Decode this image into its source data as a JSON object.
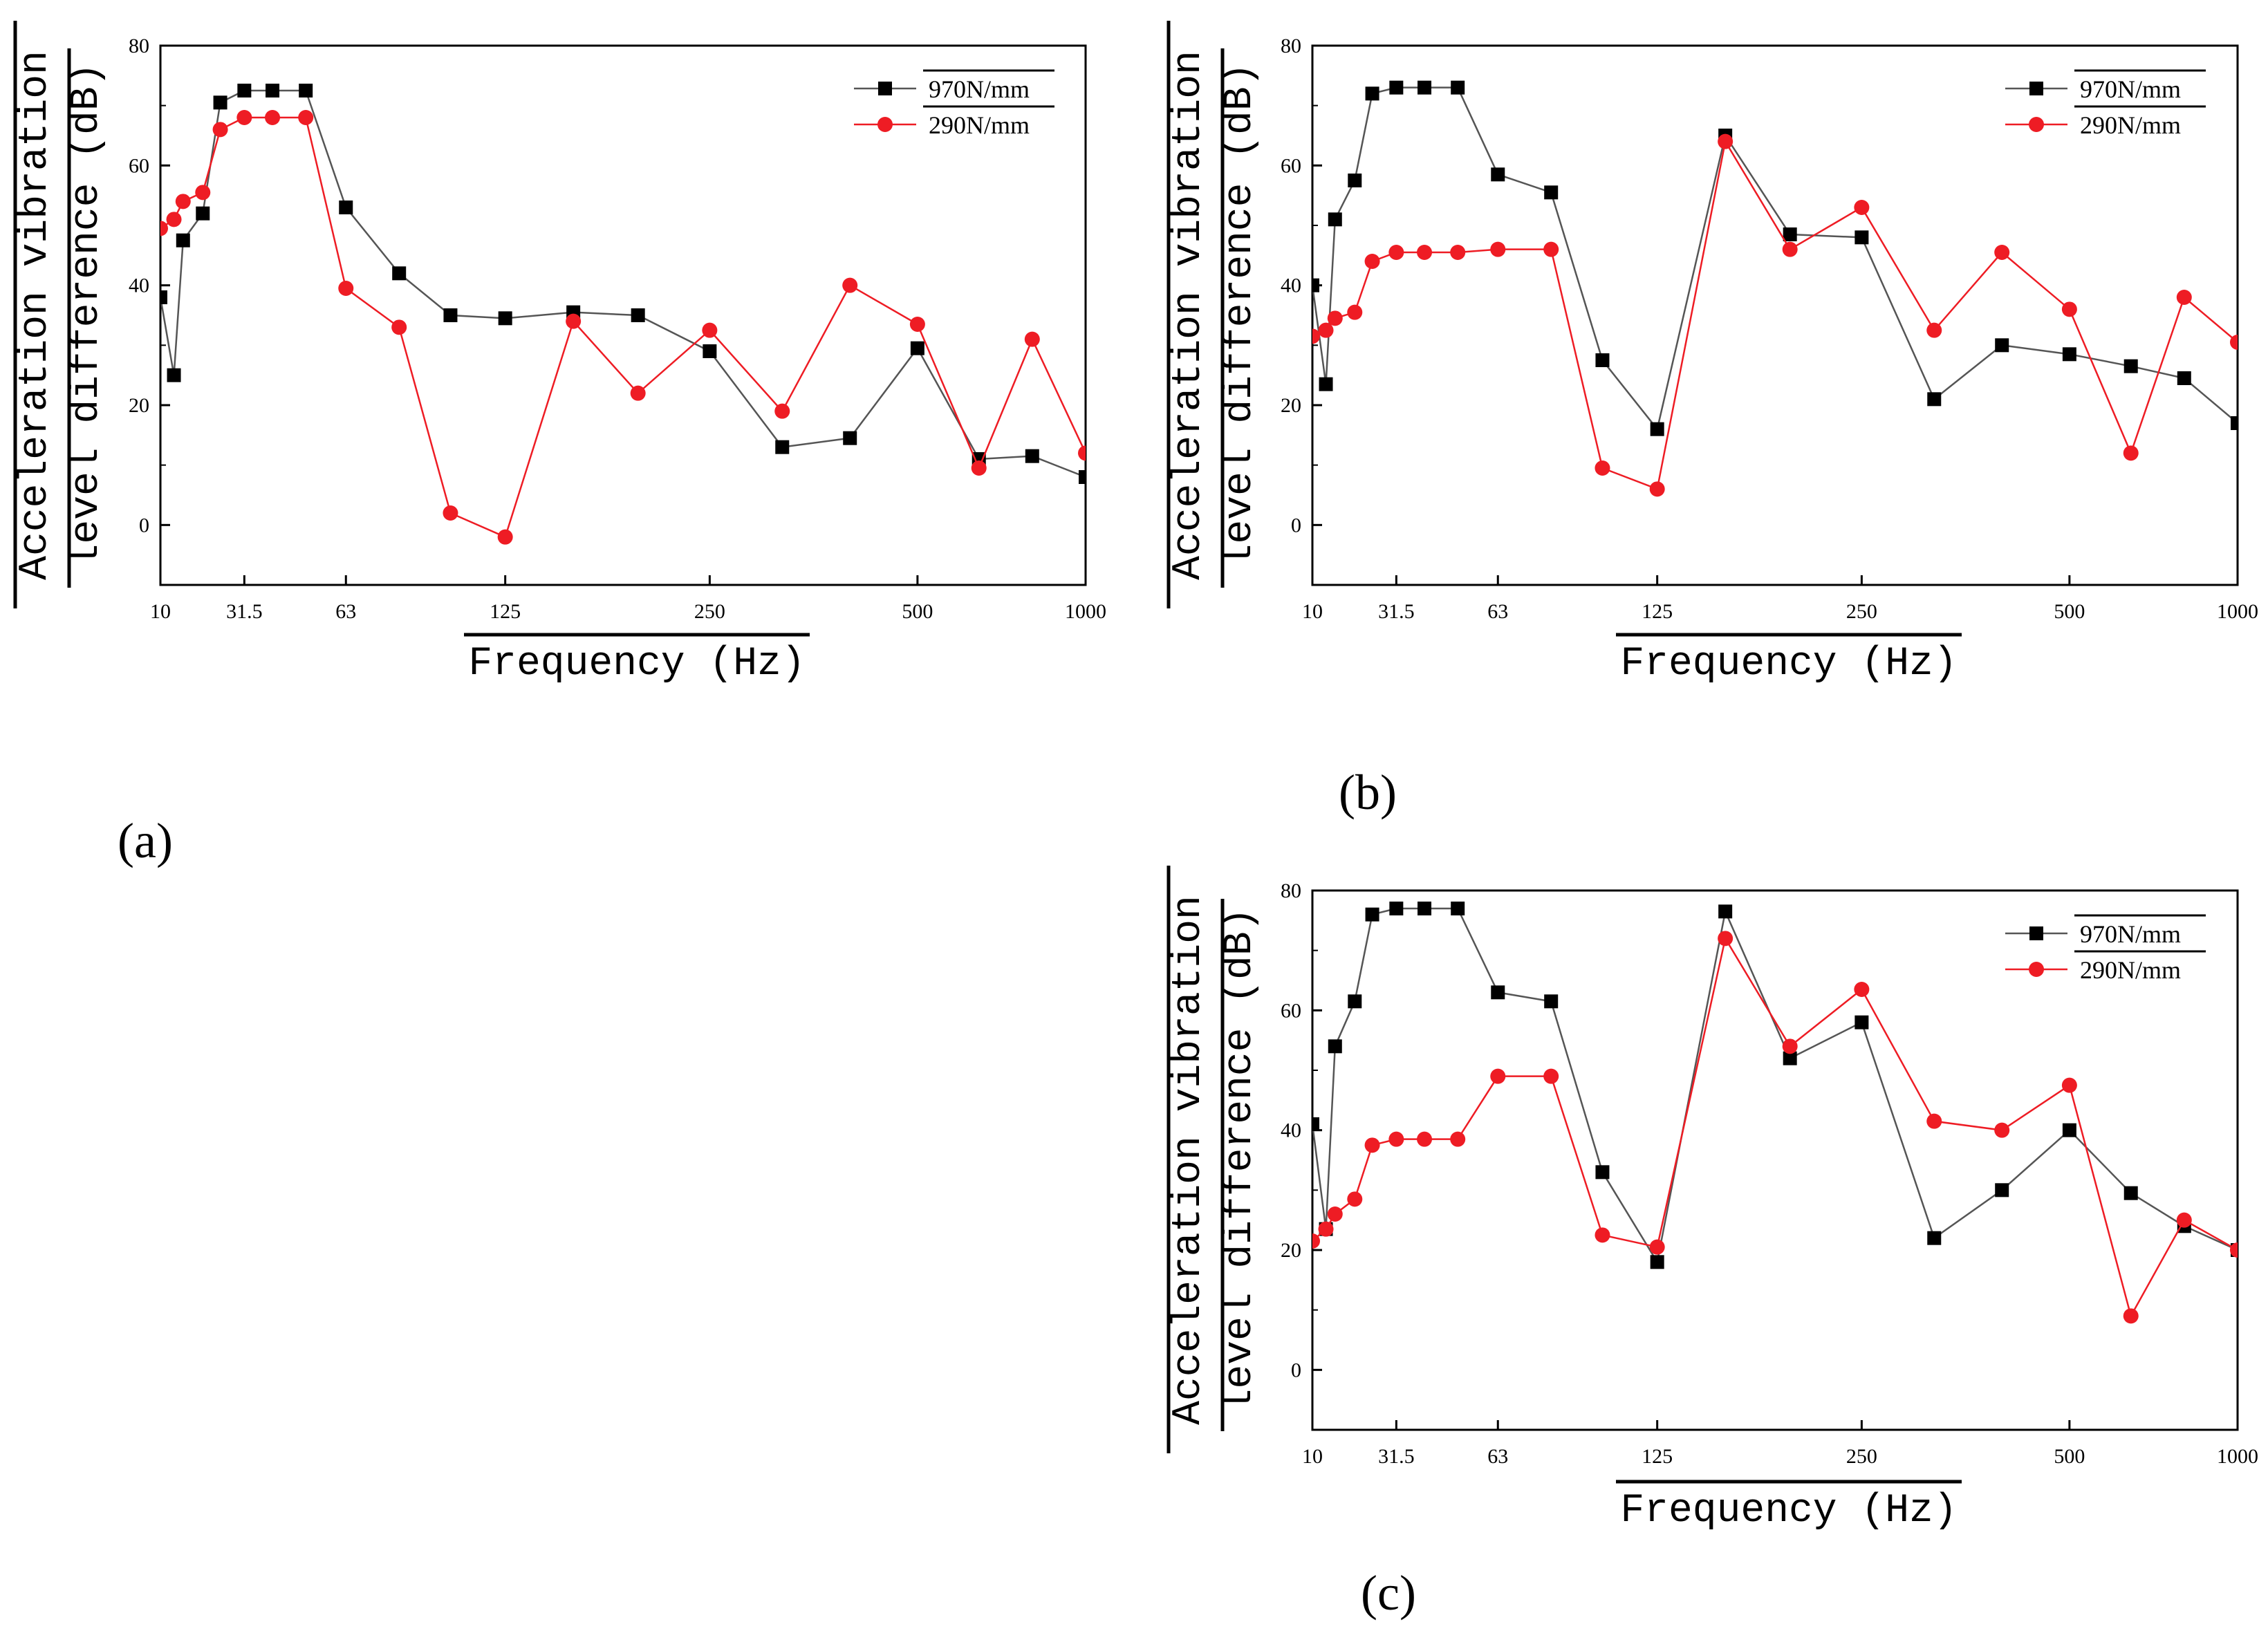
{
  "colors": {
    "series_black": "#000000",
    "series_red": "#ee1c24",
    "line_black": "#555555",
    "axis": "#000000"
  },
  "chart_data": [
    {
      "type": "line",
      "panel": "(a)",
      "xlabel": "Frequency (Hz)",
      "ylabel_line1": "Acceleration vibration",
      "ylabel_line2": "level difference (dB)",
      "ylim": [
        -10,
        80
      ],
      "yticks": [
        "80",
        "60",
        "40",
        "20",
        "0"
      ],
      "xticks": [
        "10",
        "31.5",
        "63",
        "125",
        "250",
        "500",
        "1000"
      ],
      "series": [
        {
          "name": "970N/mm",
          "marker": "square",
          "color": "#000000",
          "values": [
            38,
            25,
            47.5,
            52,
            70.5,
            72.5,
            72.5,
            72.5,
            53,
            42,
            35,
            34.5,
            35.5,
            35,
            29,
            13,
            14.5,
            29.5,
            11,
            11.5,
            8
          ]
        },
        {
          "name": "290N/mm",
          "marker": "circle",
          "color": "#ee1c24",
          "values": [
            49.5,
            51,
            54,
            55.5,
            66,
            68,
            68,
            68,
            39.5,
            33,
            2,
            -2,
            34,
            22,
            32.5,
            19,
            40,
            33.5,
            9.5,
            31,
            12
          ]
        }
      ]
    },
    {
      "type": "line",
      "panel": "(b)",
      "xlabel": "Frequency (Hz)",
      "ylabel_line1": "Acceleration vibration",
      "ylabel_line2": "level difference (dB)",
      "ylim": [
        -10,
        80
      ],
      "yticks": [
        "80",
        "60",
        "40",
        "20",
        "0"
      ],
      "xticks": [
        "10",
        "31.5",
        "63",
        "125",
        "250",
        "500",
        "1000"
      ],
      "series": [
        {
          "name": "970N/mm",
          "marker": "square",
          "color": "#000000",
          "values": [
            40,
            23.5,
            51,
            57.5,
            72,
            73,
            73,
            73,
            58.5,
            55.5,
            27.5,
            16,
            65,
            48.5,
            48,
            21,
            30,
            28.5,
            26.5,
            24.5,
            17
          ]
        },
        {
          "name": "290N/mm",
          "marker": "circle",
          "color": "#ee1c24",
          "values": [
            31.5,
            32.5,
            34.5,
            35.5,
            44,
            45.5,
            45.5,
            45.5,
            46,
            46,
            9.5,
            6,
            64,
            46,
            53,
            32.5,
            45.5,
            36,
            12,
            38,
            30.5
          ]
        }
      ]
    },
    {
      "type": "line",
      "panel": "(c)",
      "xlabel": "Frequency (Hz)",
      "ylabel_line1": "Acceleration vibration",
      "ylabel_line2": "level difference (dB)",
      "ylim": [
        -10,
        80
      ],
      "yticks": [
        "80",
        "60",
        "40",
        "20",
        "0"
      ],
      "xticks": [
        "10",
        "31.5",
        "63",
        "125",
        "250",
        "500",
        "1000"
      ],
      "series": [
        {
          "name": "970N/mm",
          "marker": "square",
          "color": "#000000",
          "values": [
            41,
            23.5,
            54,
            61.5,
            76,
            77,
            77,
            77,
            63,
            61.5,
            33,
            18,
            76.5,
            52,
            58,
            22,
            30,
            40,
            29.5,
            24,
            20
          ]
        },
        {
          "name": "290N/mm",
          "marker": "circle",
          "color": "#ee1c24",
          "values": [
            21.5,
            23.5,
            26,
            28.5,
            37.5,
            38.5,
            38.5,
            38.5,
            49,
            49,
            22.5,
            20.5,
            72,
            54,
            63.5,
            41.5,
            40,
            47.5,
            9,
            25,
            20
          ]
        }
      ]
    }
  ]
}
